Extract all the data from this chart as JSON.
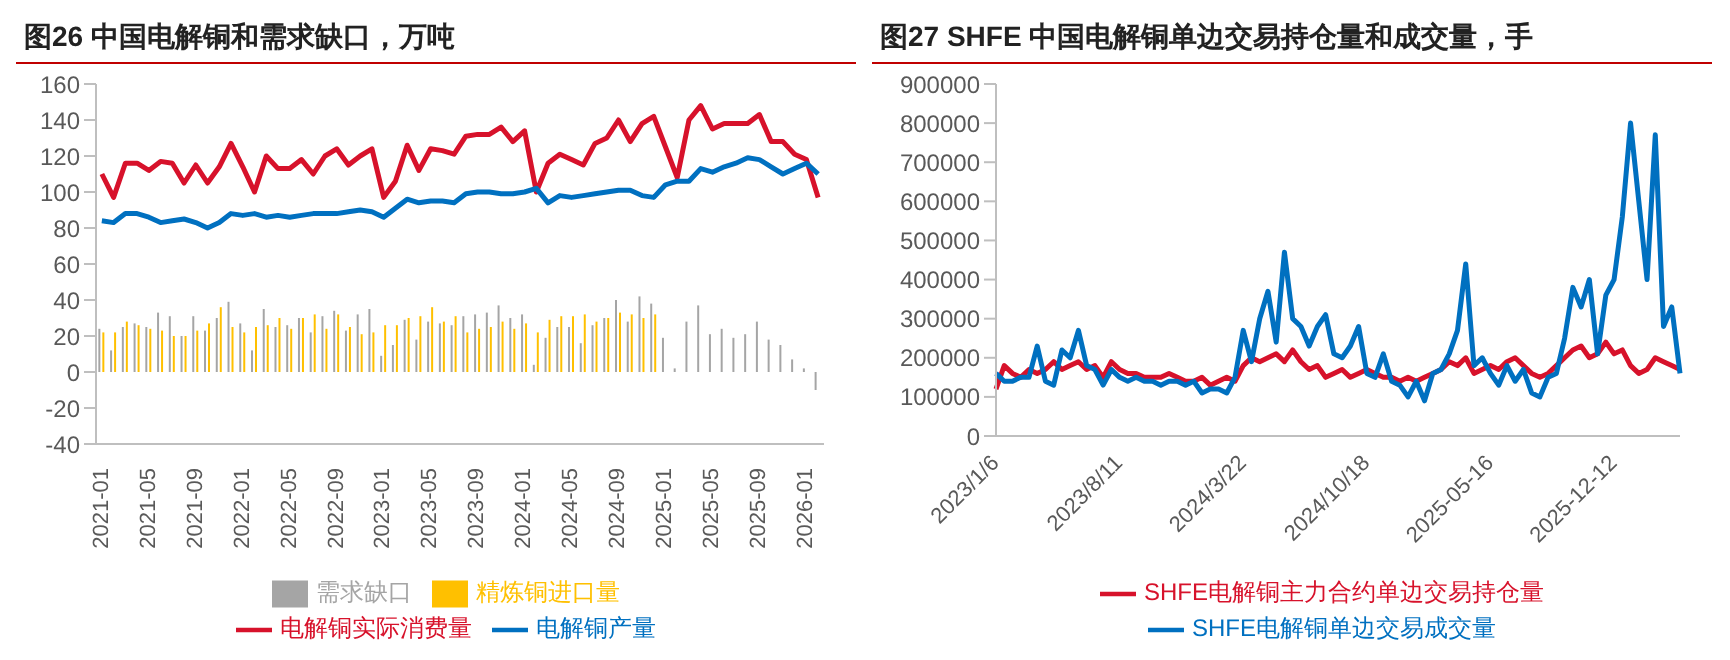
{
  "chart_data": [
    {
      "type": "bar",
      "title": "图26  中国电解铜和需求缺口，万吨",
      "categories": [
        "2021-01",
        null,
        null,
        null,
        "2021-05",
        null,
        null,
        null,
        "2021-09",
        null,
        null,
        null,
        "2022-01",
        null,
        null,
        null,
        "2022-05",
        null,
        null,
        null,
        "2022-09",
        null,
        null,
        null,
        "2023-01",
        null,
        null,
        null,
        "2023-05",
        null,
        null,
        null,
        "2023-09",
        null,
        null,
        null,
        "2024-01",
        null,
        null,
        null,
        "2024-05",
        null,
        null,
        null,
        "2024-09",
        null,
        null,
        null,
        "2025-01",
        null,
        null,
        null,
        "2025-05",
        null,
        null,
        null,
        "2025-09",
        null,
        null,
        null,
        "2026-01",
        null
      ],
      "series": [
        {
          "name": "需求缺口",
          "color": "#a5a5a5",
          "values": [
            24,
            12,
            25,
            27,
            25,
            33,
            31,
            20,
            31,
            23,
            30,
            39,
            27,
            12,
            35,
            25,
            26,
            30,
            22,
            31,
            34,
            23,
            32,
            35,
            9,
            15,
            29,
            18,
            28,
            27,
            26,
            31,
            32,
            33,
            37,
            30,
            32,
            4,
            19,
            25,
            25,
            16,
            26,
            30,
            40,
            28,
            42,
            38,
            19,
            2,
            28,
            37,
            21,
            24,
            19,
            21,
            28,
            18,
            15,
            7,
            2,
            -10
          ]
        },
        {
          "name": "精炼铜进口量",
          "color": "#ffc000",
          "values": [
            22,
            22,
            28,
            26,
            24,
            23,
            20,
            20,
            23,
            27,
            36,
            25,
            22,
            25,
            26,
            30,
            24,
            30,
            32,
            24,
            32,
            25,
            21,
            22,
            26,
            26,
            30,
            31,
            36,
            28,
            31,
            22,
            24,
            25,
            28,
            24,
            27,
            22,
            29,
            31,
            31,
            32,
            28,
            30,
            33,
            32,
            30,
            32,
            null,
            null,
            null,
            null,
            null,
            null,
            null,
            null,
            null,
            null,
            null,
            null,
            null,
            null
          ]
        },
        {
          "name": "电解铜实际消费量",
          "type": "line",
          "color": "#d7122b",
          "values": [
            110,
            97,
            116,
            116,
            112,
            117,
            116,
            105,
            115,
            105,
            114,
            127,
            114,
            100,
            120,
            113,
            113,
            118,
            110,
            120,
            124,
            115,
            120,
            124,
            97,
            106,
            126,
            112,
            124,
            123,
            121,
            131,
            132,
            132,
            136,
            128,
            134,
            100,
            116,
            121,
            118,
            115,
            127,
            130,
            140,
            128,
            138,
            142,
            125,
            108,
            140,
            148,
            135,
            138,
            138,
            138,
            143,
            128,
            128,
            121,
            118,
            97
          ]
        },
        {
          "name": "电解铜产量",
          "type": "line",
          "color": "#0070c0",
          "values": [
            84,
            83,
            88,
            88,
            86,
            83,
            84,
            85,
            83,
            80,
            83,
            88,
            87,
            88,
            86,
            87,
            86,
            87,
            88,
            88,
            88,
            89,
            90,
            89,
            86,
            91,
            96,
            94,
            95,
            95,
            94,
            99,
            100,
            100,
            99,
            99,
            100,
            102,
            94,
            98,
            97,
            98,
            99,
            100,
            101,
            101,
            98,
            97,
            104,
            106,
            106,
            113,
            111,
            114,
            116,
            119,
            118,
            114,
            110,
            113,
            116,
            110
          ]
        }
      ],
      "ylim": [
        -40,
        160
      ],
      "yticks": [
        -40,
        -20,
        0,
        20,
        40,
        60,
        80,
        100,
        120,
        140,
        160
      ],
      "grid": false,
      "legend": "bottom"
    },
    {
      "type": "line",
      "title": "图27  SHFE 中国电解铜单边交易持仓量和成交量，手",
      "categories": [
        "2023/1/6",
        null,
        null,
        null,
        null,
        null,
        null,
        null,
        null,
        null,
        null,
        null,
        null,
        null,
        null,
        "2023/8/11",
        null,
        null,
        null,
        null,
        null,
        null,
        null,
        null,
        null,
        null,
        null,
        null,
        null,
        null,
        "2024/3/22",
        null,
        null,
        null,
        null,
        null,
        null,
        null,
        null,
        null,
        null,
        null,
        null,
        null,
        null,
        "2024/10/18",
        null,
        null,
        null,
        null,
        null,
        null,
        null,
        null,
        null,
        null,
        null,
        null,
        null,
        null,
        "2025-05-16",
        null,
        null,
        null,
        null,
        null,
        null,
        null,
        null,
        null,
        null,
        null,
        null,
        null,
        null,
        "2025-12-12",
        null,
        null,
        null,
        null,
        null,
        null,
        null,
        null
      ],
      "series": [
        {
          "name": "SHFE电解铜主力合约单边交易持仓量",
          "color": "#d7122b",
          "values": [
            120000,
            180000,
            160000,
            150000,
            170000,
            160000,
            170000,
            190000,
            170000,
            180000,
            190000,
            170000,
            180000,
            150000,
            190000,
            170000,
            160000,
            160000,
            150000,
            150000,
            150000,
            160000,
            150000,
            140000,
            140000,
            150000,
            130000,
            140000,
            150000,
            140000,
            180000,
            200000,
            190000,
            200000,
            210000,
            190000,
            220000,
            190000,
            170000,
            180000,
            150000,
            160000,
            170000,
            150000,
            160000,
            170000,
            160000,
            150000,
            150000,
            140000,
            150000,
            140000,
            150000,
            160000,
            170000,
            190000,
            180000,
            200000,
            160000,
            170000,
            180000,
            170000,
            190000,
            200000,
            180000,
            160000,
            150000,
            160000,
            180000,
            200000,
            220000,
            230000,
            200000,
            210000,
            240000,
            210000,
            220000,
            180000,
            160000,
            170000,
            200000,
            190000,
            180000,
            170000
          ]
        },
        {
          "name": "SHFE电解铜单边交易成交量",
          "color": "#0070c0",
          "values": [
            160000,
            140000,
            140000,
            150000,
            150000,
            230000,
            140000,
            130000,
            220000,
            200000,
            270000,
            180000,
            170000,
            130000,
            170000,
            150000,
            140000,
            150000,
            140000,
            140000,
            130000,
            140000,
            140000,
            130000,
            140000,
            110000,
            120000,
            120000,
            110000,
            150000,
            270000,
            190000,
            300000,
            370000,
            240000,
            470000,
            300000,
            280000,
            230000,
            280000,
            310000,
            210000,
            200000,
            230000,
            280000,
            160000,
            150000,
            210000,
            140000,
            130000,
            100000,
            140000,
            90000,
            160000,
            170000,
            210000,
            270000,
            440000,
            180000,
            200000,
            160000,
            130000,
            180000,
            140000,
            170000,
            110000,
            100000,
            150000,
            160000,
            250000,
            380000,
            330000,
            400000,
            210000,
            360000,
            400000,
            560000,
            800000,
            600000,
            400000,
            770000,
            280000,
            330000,
            160000
          ]
        }
      ],
      "ylim": [
        0,
        900000
      ],
      "yticks": [
        0,
        100000,
        200000,
        300000,
        400000,
        500000,
        600000,
        700000,
        800000,
        900000
      ],
      "grid": false,
      "legend": "bottom"
    }
  ]
}
